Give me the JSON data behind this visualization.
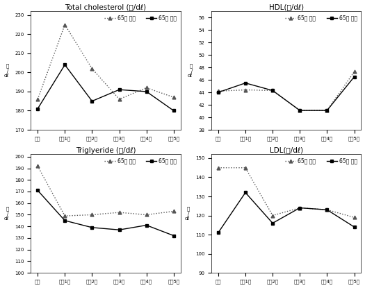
{
  "x_labels": [
    "기초",
    "추적1기",
    "추적2기",
    "추적3기",
    "추적4기",
    "추적5기"
  ],
  "charts": [
    {
      "title": "Total cholesterol (㎎/dℓ)",
      "ylabel": "㎎\n/\ndℓ",
      "ylim": [
        170,
        232
      ],
      "yticks": [
        170,
        180,
        190,
        200,
        210,
        220,
        230
      ],
      "series1_label": "65세 미만",
      "series2_label": "65세 이상",
      "series1": [
        186,
        225,
        202,
        186,
        192,
        187
      ],
      "series2": [
        181,
        204,
        185,
        191,
        190,
        180
      ],
      "legend_loc": "upper right"
    },
    {
      "title": "HDL(㎎/dℓ)",
      "ylabel": "㎎\n/\ndℓ",
      "ylim": [
        38,
        57
      ],
      "yticks": [
        38,
        40,
        42,
        44,
        46,
        48,
        50,
        52,
        54,
        56
      ],
      "series1_label": "65세 미만",
      "series2_label": "65세 이상",
      "series1": [
        44.2,
        44.4,
        44.3,
        41.1,
        41.1,
        47.3
      ],
      "series2": [
        44.0,
        45.5,
        44.3,
        41.1,
        41.1,
        46.5
      ],
      "legend_loc": "upper right"
    },
    {
      "title": "Triglyeride (㎎/dℓ)",
      "ylabel": "㎎\n/\ndℓ",
      "ylim": [
        100,
        202
      ],
      "yticks": [
        100,
        110,
        120,
        130,
        140,
        150,
        160,
        170,
        180,
        190,
        200
      ],
      "series1_label": "65세 미만",
      "series2_label": "65세 이상",
      "series1": [
        192,
        149,
        150,
        152,
        150,
        153
      ],
      "series2": [
        171,
        145,
        139,
        137,
        141,
        132
      ],
      "legend_loc": "upper right"
    },
    {
      "title": "LDL(㎎/dℓ)",
      "ylabel": "㎎\n/\ndℓ",
      "ylim": [
        90,
        152
      ],
      "yticks": [
        90,
        100,
        110,
        120,
        130,
        140,
        150
      ],
      "series1_label": "65세 미만",
      "series2_label": "65세 이상",
      "series1": [
        145,
        145,
        120,
        124,
        123,
        119
      ],
      "series2": [
        111,
        132,
        116,
        124,
        123,
        114
      ],
      "legend_loc": "upper right"
    }
  ],
  "line1_style": {
    "color": "#555555",
    "linestyle": "dotted",
    "marker": "^",
    "markersize": 3.5,
    "linewidth": 1.0
  },
  "line2_style": {
    "color": "#000000",
    "linestyle": "solid",
    "marker": "s",
    "markersize": 3.5,
    "linewidth": 1.0
  },
  "legend_fontsize": 5.5,
  "tick_fontsize": 5,
  "title_fontsize": 7.5,
  "ylabel_fontsize": 5,
  "background_color": "#ffffff"
}
